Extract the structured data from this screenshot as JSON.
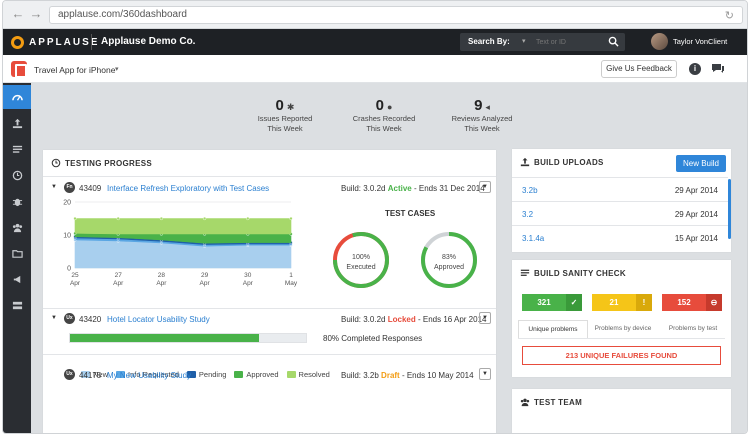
{
  "browser": {
    "url": "applause.com/360dashboard"
  },
  "appbar": {
    "logo": "APPLAUSE",
    "company": "Applause Demo Co.",
    "search_label": "Search By:",
    "search_placeholder": "Text or ID",
    "username": "Taylor VonClient"
  },
  "subbar": {
    "app_name": "Travel App for iPhone",
    "feedback": "Give Us Feedback"
  },
  "sidebar": {
    "items": [
      "dashboard-icon",
      "upload-icon",
      "list-icon",
      "clock-icon",
      "bug-icon",
      "team-icon",
      "folder-icon",
      "megaphone-icon",
      "server-icon"
    ]
  },
  "stats": [
    {
      "value": "0",
      "icon": "bug-icon",
      "label1": "Issues Reported",
      "label2": "This Week"
    },
    {
      "value": "0",
      "icon": "alert-icon",
      "label1": "Crashes Recorded",
      "label2": "This Week"
    },
    {
      "value": "9",
      "icon": "megaphone-icon",
      "label1": "Reviews Analyzed",
      "label2": "This Week"
    }
  ],
  "testing": {
    "title": "TESTING PROGRESS",
    "projects": [
      {
        "badge": "Fn",
        "id": "43409",
        "name": "Interface Refresh Exploratory with Test Cases",
        "build": "Build: 3.0.2d",
        "status": "Active",
        "status_color": "#49b249",
        "ends": "- Ends 31 Dec 2014"
      },
      {
        "badge": "Ux",
        "id": "43420",
        "name": "Hotel Locator Usability Study",
        "build": "Build: 3.0.2d",
        "status": "Locked",
        "status_color": "#e74c3c",
        "ends": "- Ends 16 Apr 2014"
      },
      {
        "badge": "Ux",
        "id": "44175",
        "name": "My New Usability Study",
        "build": "Build: 3.2b",
        "status": "Draft",
        "status_color": "#f39c12",
        "ends": "- Ends 10 May 2014"
      }
    ],
    "test_cases_title": "TEST CASES",
    "gauges": [
      {
        "value": 100,
        "pct": "100%",
        "label": "Executed",
        "color": "#49b249",
        "secondary_color": "#e74c3c"
      },
      {
        "value": 83,
        "pct": "83%",
        "label": "Approved",
        "color": "#49b249",
        "secondary_color": "#cfd3d6"
      }
    ],
    "progress": {
      "value": 0.8,
      "label": "80% Completed Responses"
    }
  },
  "chart_data": {
    "type": "area",
    "stacked": true,
    "x": [
      "25 Apr",
      "27 Apr",
      "28 Apr",
      "29 Apr",
      "30 Apr",
      "1 May"
    ],
    "ylim": [
      0,
      20
    ],
    "yticks": [
      0,
      10,
      20
    ],
    "series": [
      {
        "name": "New",
        "color": "#a8cfee",
        "values": [
          8.5,
          8.2,
          7.6,
          6.6,
          6.9,
          6.9
        ]
      },
      {
        "name": "Info Requested",
        "color": "#5aa6e3",
        "values": [
          0.6,
          0.6,
          0.5,
          0.5,
          0.4,
          0.4
        ]
      },
      {
        "name": "Pending",
        "color": "#1f5fa8",
        "values": [
          0.4,
          0.4,
          0.4,
          0.4,
          0.4,
          0.4
        ]
      },
      {
        "name": "Approved",
        "color": "#49b249",
        "values": [
          1.0,
          1.1,
          1.8,
          2.8,
          2.6,
          2.6
        ]
      },
      {
        "name": "Resolved",
        "color": "#a6d86a",
        "values": [
          4.5,
          4.7,
          4.7,
          4.7,
          4.7,
          4.7
        ]
      }
    ]
  },
  "uploads": {
    "title": "BUILD UPLOADS",
    "new_build": "New Build",
    "rows": [
      {
        "version": "3.2b",
        "date": "29 Apr 2014"
      },
      {
        "version": "3.2",
        "date": "29 Apr 2014"
      },
      {
        "version": "3.1.4a",
        "date": "15 Apr 2014"
      }
    ]
  },
  "sanity": {
    "title": "BUILD SANITY CHECK",
    "boxes": [
      {
        "value": "321",
        "icon": "check-icon",
        "glyph": "✓",
        "color": "#49b249",
        "dark": "#3a9a3a"
      },
      {
        "value": "21",
        "icon": "warning-icon",
        "glyph": "!",
        "color": "#f5c518",
        "dark": "#d9a90b"
      },
      {
        "value": "152",
        "icon": "error-icon",
        "glyph": "⊖",
        "color": "#e74c3c",
        "dark": "#c63a2c"
      }
    ],
    "tabs": [
      "Unique problems",
      "Problems by device",
      "Problems by test"
    ],
    "failures": "213 UNIQUE FAILURES FOUND"
  },
  "team": {
    "title": "TEST TEAM"
  }
}
